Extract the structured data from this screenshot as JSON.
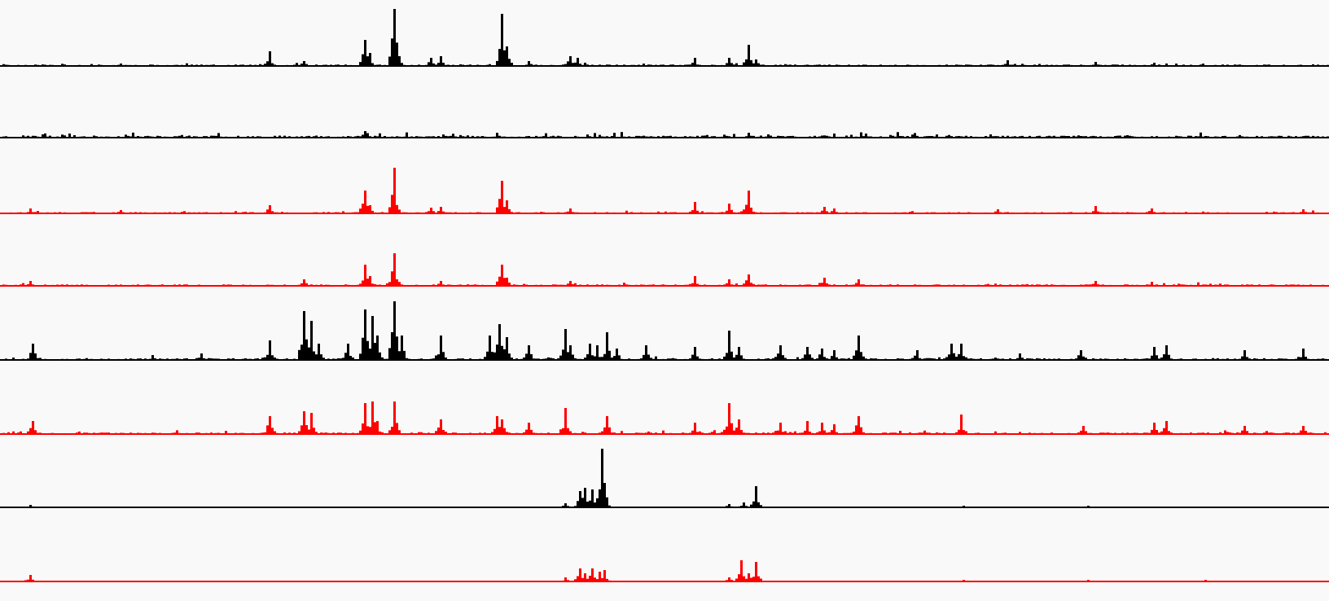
{
  "chart_data": {
    "type": "area",
    "title": "",
    "xlabel": "",
    "ylabel": "",
    "x_range": [
      0,
      1632
    ],
    "grid": false,
    "legend": "none",
    "colors": {
      "black": "#000000",
      "red": "#ff0000",
      "background": "#f9f9f9"
    },
    "tracks": [
      {
        "color": "#000000",
        "ylim": [
          0,
          72
        ],
        "background": 1.8,
        "noise": 2.4,
        "seed": 11,
        "peaks": [
          [
            148,
            3
          ],
          [
            330,
            18
          ],
          [
            373,
            6
          ],
          [
            448,
            32
          ],
          [
            452,
            16
          ],
          [
            482,
            70
          ],
          [
            488,
            12
          ],
          [
            528,
            10
          ],
          [
            541,
            12
          ],
          [
            616,
            64
          ],
          [
            622,
            24
          ],
          [
            647,
            6
          ],
          [
            700,
            12
          ],
          [
            708,
            10
          ],
          [
            853,
            10
          ],
          [
            894,
            10
          ],
          [
            919,
            26
          ],
          [
            926,
            8
          ],
          [
            1237,
            7
          ],
          [
            1345,
            5
          ],
          [
            1416,
            4
          ],
          [
            1430,
            3
          ]
        ]
      },
      {
        "color": "#000000",
        "ylim": [
          0,
          72
        ],
        "background": 2.5,
        "noise": 5.0,
        "seed": 23,
        "peaks": [
          [
            448,
            8
          ],
          [
            610,
            6
          ],
          [
            919,
            6
          ],
          [
            1062,
            5
          ],
          [
            1215,
            4
          ]
        ]
      },
      {
        "color": "#ff0000",
        "ylim": [
          0,
          72
        ],
        "background": 1.6,
        "noise": 2.2,
        "seed": 37,
        "peaks": [
          [
            36,
            6
          ],
          [
            148,
            4
          ],
          [
            330,
            10
          ],
          [
            448,
            28
          ],
          [
            452,
            10
          ],
          [
            482,
            56
          ],
          [
            528,
            7
          ],
          [
            541,
            8
          ],
          [
            616,
            40
          ],
          [
            622,
            16
          ],
          [
            700,
            6
          ],
          [
            853,
            14
          ],
          [
            894,
            12
          ],
          [
            919,
            28
          ],
          [
            1010,
            8
          ],
          [
            1022,
            6
          ],
          [
            1225,
            5
          ],
          [
            1345,
            9
          ],
          [
            1412,
            6
          ],
          [
            1600,
            5
          ]
        ]
      },
      {
        "color": "#ff0000",
        "ylim": [
          0,
          72
        ],
        "background": 1.8,
        "noise": 2.6,
        "seed": 41,
        "peaks": [
          [
            36,
            6
          ],
          [
            373,
            8
          ],
          [
            448,
            26
          ],
          [
            452,
            12
          ],
          [
            482,
            40
          ],
          [
            541,
            6
          ],
          [
            616,
            26
          ],
          [
            622,
            10
          ],
          [
            700,
            6
          ],
          [
            853,
            12
          ],
          [
            894,
            8
          ],
          [
            919,
            14
          ],
          [
            1010,
            10
          ],
          [
            1053,
            8
          ],
          [
            1345,
            6
          ],
          [
            1412,
            5
          ]
        ]
      },
      {
        "color": "#000000",
        "ylim": [
          0,
          72
        ],
        "background": 2.2,
        "noise": 2.6,
        "seed": 53,
        "peaks": [
          [
            38,
            20
          ],
          [
            185,
            6
          ],
          [
            245,
            8
          ],
          [
            330,
            24
          ],
          [
            372,
            60
          ],
          [
            382,
            48
          ],
          [
            390,
            20
          ],
          [
            425,
            20
          ],
          [
            448,
            62
          ],
          [
            456,
            54
          ],
          [
            462,
            30
          ],
          [
            482,
            72
          ],
          [
            492,
            30
          ],
          [
            540,
            30
          ],
          [
            600,
            30
          ],
          [
            613,
            44
          ],
          [
            622,
            28
          ],
          [
            647,
            18
          ],
          [
            692,
            38
          ],
          [
            700,
            18
          ],
          [
            722,
            20
          ],
          [
            733,
            18
          ],
          [
            745,
            34
          ],
          [
            756,
            14
          ],
          [
            793,
            18
          ],
          [
            853,
            16
          ],
          [
            893,
            36
          ],
          [
            905,
            16
          ],
          [
            956,
            18
          ],
          [
            990,
            16
          ],
          [
            1008,
            14
          ],
          [
            1022,
            12
          ],
          [
            1053,
            30
          ],
          [
            1125,
            12
          ],
          [
            1167,
            20
          ],
          [
            1180,
            20
          ],
          [
            1250,
            8
          ],
          [
            1326,
            12
          ],
          [
            1415,
            16
          ],
          [
            1430,
            18
          ],
          [
            1528,
            12
          ],
          [
            1600,
            14
          ]
        ]
      },
      {
        "color": "#ff0000",
        "ylim": [
          0,
          72
        ],
        "background": 2.0,
        "noise": 3.0,
        "seed": 67,
        "peaks": [
          [
            38,
            16
          ],
          [
            330,
            22
          ],
          [
            372,
            28
          ],
          [
            382,
            26
          ],
          [
            448,
            38
          ],
          [
            456,
            40
          ],
          [
            462,
            16
          ],
          [
            482,
            40
          ],
          [
            540,
            18
          ],
          [
            608,
            22
          ],
          [
            616,
            18
          ],
          [
            647,
            14
          ],
          [
            692,
            32
          ],
          [
            745,
            22
          ],
          [
            853,
            14
          ],
          [
            893,
            38
          ],
          [
            905,
            18
          ],
          [
            956,
            14
          ],
          [
            990,
            16
          ],
          [
            1008,
            14
          ],
          [
            1022,
            12
          ],
          [
            1053,
            22
          ],
          [
            1180,
            24
          ],
          [
            1328,
            10
          ],
          [
            1416,
            14
          ],
          [
            1430,
            16
          ],
          [
            1528,
            10
          ],
          [
            1600,
            10
          ]
        ]
      },
      {
        "color": "#000000",
        "ylim": [
          0,
          72
        ],
        "background": 0,
        "noise": 0,
        "seed": 71,
        "peaks": [
          [
            36,
            3
          ],
          [
            694,
            5
          ],
          [
            710,
            20
          ],
          [
            718,
            24
          ],
          [
            726,
            22
          ],
          [
            734,
            18
          ],
          [
            738,
            72
          ],
          [
            742,
            30
          ],
          [
            894,
            4
          ],
          [
            912,
            6
          ],
          [
            926,
            26
          ],
          [
            1182,
            2
          ],
          [
            1336,
            2
          ]
        ]
      },
      {
        "color": "#ff0000",
        "ylim": [
          0,
          72
        ],
        "background": 0,
        "noise": 0,
        "seed": 79,
        "peaks": [
          [
            36,
            8
          ],
          [
            694,
            5
          ],
          [
            710,
            16
          ],
          [
            718,
            10
          ],
          [
            726,
            16
          ],
          [
            734,
            12
          ],
          [
            740,
            14
          ],
          [
            894,
            5
          ],
          [
            910,
            26
          ],
          [
            918,
            10
          ],
          [
            926,
            24
          ],
          [
            1182,
            2
          ],
          [
            1336,
            2
          ],
          [
            1480,
            2
          ]
        ]
      }
    ]
  }
}
